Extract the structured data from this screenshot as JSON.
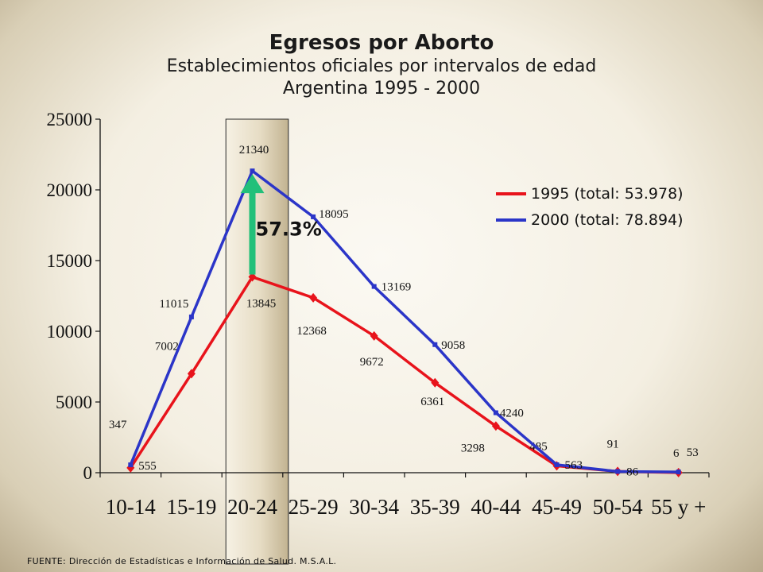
{
  "chart_data": {
    "type": "line",
    "title": "Egresos por Aborto",
    "subtitle": "Establecimientos oficiales por intervalos de edad",
    "subtitle2": "Argentina 1995 - 2000",
    "categories": [
      "10-14",
      "15-19",
      "20-24",
      "25-29",
      "30-34",
      "35-39",
      "40-44",
      "45-49",
      "50-54",
      "55 y +"
    ],
    "ylim": [
      0,
      25000
    ],
    "yticks": [
      0,
      5000,
      10000,
      15000,
      20000,
      25000
    ],
    "grid": false,
    "legend_position": "top-right",
    "highlight_category": "20-24",
    "annotation": "57.3%",
    "series": [
      {
        "name": "1995 (total: 53.978)",
        "color": "#e8131b",
        "marker": "diamond",
        "values": [
          347,
          7002,
          13845,
          12368,
          9672,
          6361,
          3298,
          485,
          91,
          6
        ],
        "labels": [
          "347",
          "7002",
          "13845",
          "12368",
          "9672",
          "6361",
          "3298",
          "485",
          "91",
          "6"
        ]
      },
      {
        "name": "2000 (total: 78.894)",
        "color": "#2b35c8",
        "marker": "square",
        "values": [
          555,
          11015,
          21340,
          18095,
          13169,
          9058,
          4240,
          563,
          86,
          53
        ],
        "labels": [
          "555",
          "11015",
          "21340",
          "18095",
          "13169",
          "9058",
          "4240",
          "563",
          "86",
          "53"
        ]
      }
    ],
    "arrow_color": "#22c07a"
  },
  "source": "FUENTE: Dirección de Estadísticas e Información de Salud. M.S.A.L."
}
